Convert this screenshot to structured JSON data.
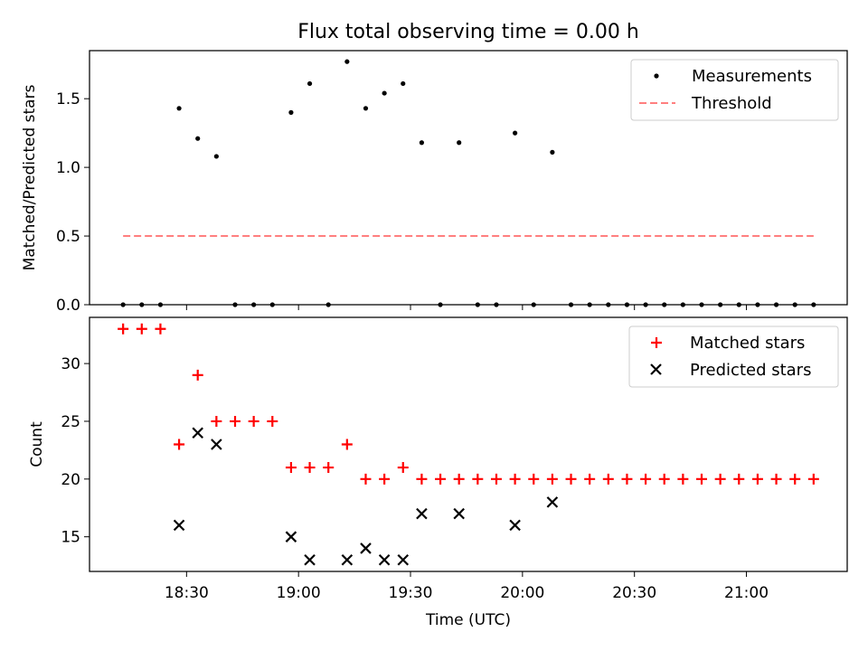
{
  "chart_data": [
    {
      "type": "scatter",
      "title": "Flux total observing time = 0.00 h",
      "xlabel": "",
      "ylabel": "Matched/Predicted stars",
      "ylim": [
        0,
        1.85
      ],
      "yticks": [
        "0.0",
        "0.5",
        "1.0",
        "1.5"
      ],
      "legend_position": "top-right",
      "series": [
        {
          "name": "Measurements",
          "style": "dot",
          "color": "#000000",
          "x_minutes": [
            0,
            5,
            10,
            15,
            20,
            25,
            30,
            35,
            40,
            45,
            50,
            55,
            60,
            65,
            70,
            75,
            80,
            85,
            90,
            95,
            100,
            105,
            110,
            115,
            120,
            125,
            130,
            135,
            140,
            145,
            150,
            155,
            160,
            165,
            170,
            175,
            180,
            185
          ],
          "values": [
            0,
            0,
            0,
            1.43,
            1.21,
            1.08,
            0,
            0,
            0,
            1.4,
            1.61,
            0,
            1.77,
            1.43,
            1.54,
            1.61,
            1.18,
            0,
            1.18,
            0,
            0,
            1.25,
            0,
            1.11,
            0,
            0,
            0,
            0,
            0,
            0,
            0,
            0,
            0,
            0,
            0,
            0,
            0,
            0
          ]
        },
        {
          "name": "Threshold",
          "style": "dashed-line",
          "color": "#ff7f7f",
          "x_minutes": [
            0,
            185
          ],
          "values": [
            0.5,
            0.5
          ]
        }
      ]
    },
    {
      "type": "scatter",
      "title": "",
      "xlabel": "Time (UTC)",
      "ylabel": "Count",
      "ylim": [
        12,
        34
      ],
      "yticks": [
        "15",
        "20",
        "25",
        "30"
      ],
      "legend_position": "top-right",
      "series": [
        {
          "name": "Matched stars",
          "style": "plus",
          "color": "#ff0000",
          "x_minutes": [
            0,
            5,
            10,
            15,
            20,
            25,
            30,
            35,
            40,
            45,
            50,
            55,
            60,
            65,
            70,
            75,
            80,
            85,
            90,
            95,
            100,
            105,
            110,
            115,
            120,
            125,
            130,
            135,
            140,
            145,
            150,
            155,
            160,
            165,
            170,
            175,
            180,
            185
          ],
          "values": [
            33,
            33,
            33,
            23,
            29,
            25,
            25,
            25,
            25,
            21,
            21,
            21,
            23,
            20,
            20,
            21,
            20,
            20,
            20,
            20,
            20,
            20,
            20,
            20,
            20,
            20,
            20,
            20,
            20,
            20,
            20,
            20,
            20,
            20,
            20,
            20,
            20,
            20
          ]
        },
        {
          "name": "Predicted stars",
          "style": "x",
          "color": "#000000",
          "x_minutes": [
            15,
            20,
            25,
            45,
            50,
            60,
            65,
            70,
            75,
            80,
            90,
            105,
            115
          ],
          "values": [
            16,
            24,
            23,
            15,
            13,
            13,
            14,
            13,
            13,
            17,
            17,
            16,
            18
          ]
        }
      ]
    }
  ],
  "x_axis": {
    "start_time": "18:13",
    "range_minutes": [
      -9,
      194
    ],
    "tick_minutes": [
      17,
      47,
      77,
      107,
      137,
      167
    ],
    "tick_labels": [
      "18:30",
      "19:00",
      "19:30",
      "20:00",
      "20:30",
      "21:00"
    ]
  }
}
